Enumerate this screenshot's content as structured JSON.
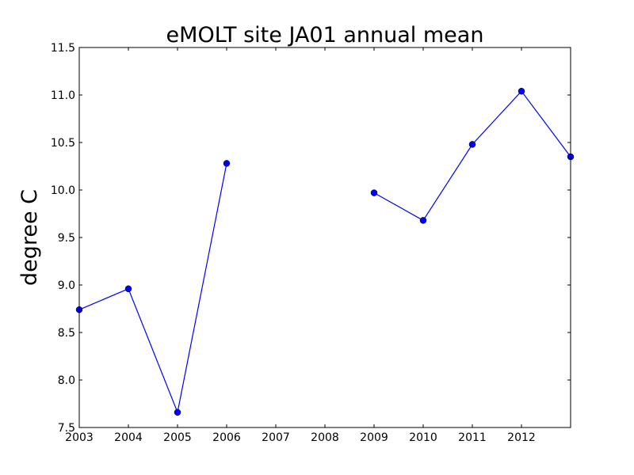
{
  "chart_data": {
    "type": "line",
    "title": "eMOLT site JA01 annual mean",
    "xlabel": "",
    "ylabel": "degree C",
    "xlim": [
      2003,
      2013
    ],
    "ylim": [
      7.5,
      11.5
    ],
    "x_ticks": [
      2003,
      2004,
      2005,
      2006,
      2007,
      2008,
      2009,
      2010,
      2011,
      2012
    ],
    "x_tick_labels": [
      "2003",
      "2004",
      "2005",
      "2006",
      "2007",
      "2008",
      "2009",
      "2010",
      "2011",
      "2012"
    ],
    "y_ticks": [
      7.5,
      8.0,
      8.5,
      9.0,
      9.5,
      10.0,
      10.5,
      11.0,
      11.5
    ],
    "y_tick_labels": [
      "7.5",
      "8.0",
      "8.5",
      "9.0",
      "9.5",
      "10.0",
      "10.5",
      "11.0",
      "11.5"
    ],
    "grid": false,
    "series_color": "#0000ff",
    "marker": "circle",
    "segments": [
      {
        "x": [
          2003,
          2004,
          2005,
          2006
        ],
        "values": [
          8.74,
          8.96,
          7.66,
          10.28
        ]
      },
      {
        "x": [
          2009,
          2010,
          2011,
          2012,
          2013
        ],
        "values": [
          9.97,
          9.68,
          10.48,
          11.04,
          10.35
        ]
      }
    ]
  }
}
